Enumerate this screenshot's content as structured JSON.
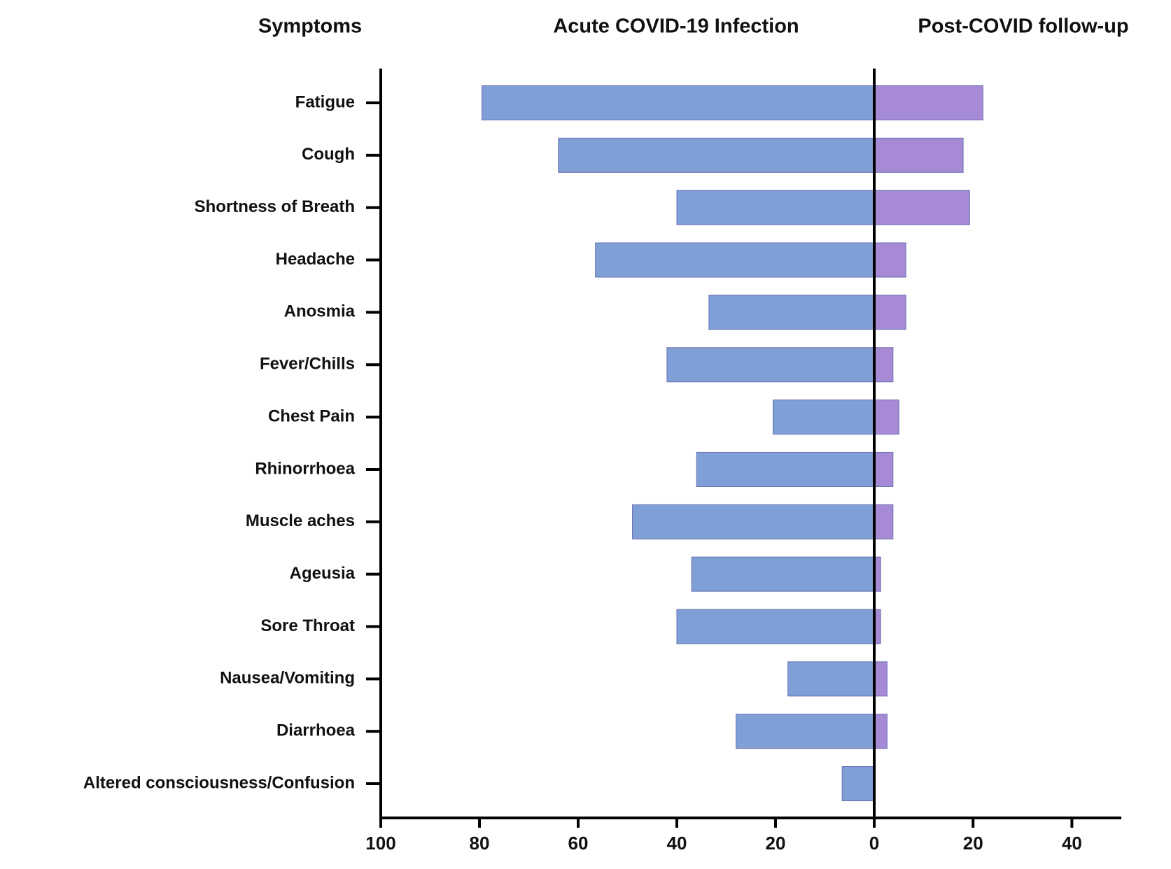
{
  "chart_data": {
    "type": "diverging_bar",
    "category_label": "Symptoms",
    "categories": [
      "Fatigue",
      "Cough",
      "Shortness of Breath",
      "Headache",
      "Anosmia",
      "Fever/Chills",
      "Chest Pain",
      "Rhinorrhoea",
      "Muscle aches",
      "Ageusia",
      "Sore Throat",
      "Nausea/Vomiting",
      "Diarrhoea",
      "Altered consciousness/Confusion"
    ],
    "series": [
      {
        "name": "Acute COVID-19 Infection",
        "color": "#7fa0d7",
        "axis": "x",
        "values": [
          79.5,
          64,
          40,
          56.5,
          33.5,
          42,
          20.5,
          36,
          49,
          37,
          40,
          17.5,
          28,
          6.5
        ]
      },
      {
        "name": "Post-COVID follow-up",
        "color": "#a68ad6",
        "axis": "x2",
        "values": [
          22,
          18,
          19.3,
          6.4,
          6.4,
          3.8,
          5,
          3.8,
          3.8,
          1.3,
          1.3,
          2.6,
          2.6,
          0
        ]
      }
    ],
    "xlim": [
      100,
      0
    ],
    "xticks": [
      100,
      80,
      60,
      40,
      20,
      0
    ],
    "x2lim": [
      0,
      50
    ],
    "x2ticks": [
      20,
      40
    ]
  }
}
